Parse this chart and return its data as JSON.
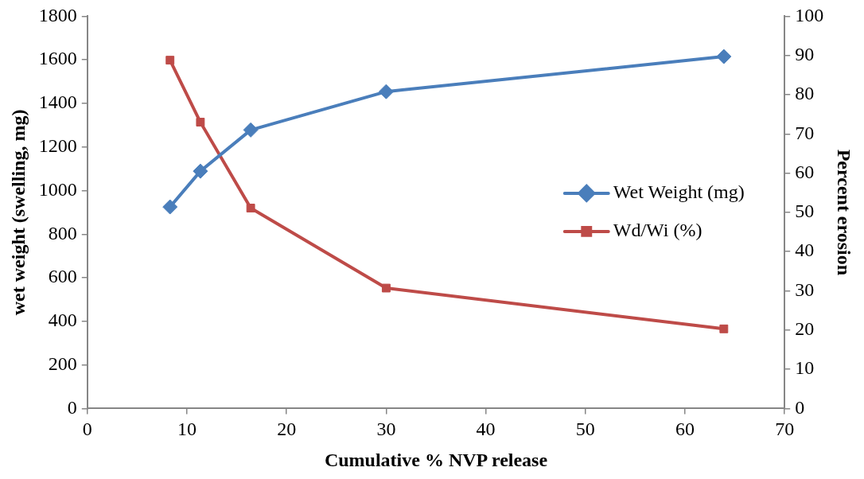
{
  "chart_data": {
    "type": "line",
    "xlabel": "Cumulative % NVP release",
    "ylabel": "wet weight (swelling, mg)",
    "y2label": "Percent erosion",
    "x": [
      8.3,
      11.35,
      16.4,
      30.0,
      63.9
    ],
    "series": [
      {
        "name": "Wet Weight (mg)",
        "color": "#4a7ebb",
        "marker": "diamond",
        "values": [
          925,
          1089,
          1278,
          1454,
          1615
        ]
      },
      {
        "name": "Wd/Wi (%)",
        "color": "#be4b48",
        "marker": "square",
        "axis": "y2",
        "values": [
          88.8,
          73.0,
          51.1,
          30.7,
          20.3
        ]
      }
    ],
    "xlim": [
      0,
      70
    ],
    "xticks": [
      0,
      10,
      20,
      30,
      40,
      50,
      60,
      70
    ],
    "ylim": [
      0,
      1800
    ],
    "yticks": [
      0,
      200,
      400,
      600,
      800,
      1000,
      1200,
      1400,
      1600,
      1800
    ],
    "y2lim": [
      0,
      100
    ],
    "y2ticks": [
      0,
      10,
      20,
      30,
      40,
      50,
      60,
      70,
      80,
      90,
      100
    ],
    "grid": false,
    "legend": "right"
  }
}
